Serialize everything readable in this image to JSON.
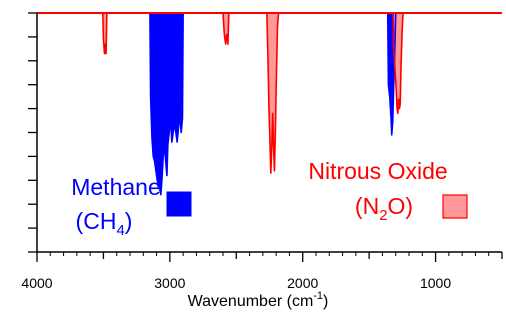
{
  "chart_data": {
    "type": "area",
    "xlabel": {
      "base": "Wavenumber (cm",
      "sup": "-1",
      "close": ")"
    },
    "xlim": [
      4000,
      500
    ],
    "ylim": [
      0,
      1
    ],
    "x_ticks": [
      4000,
      3000,
      2000,
      1000
    ],
    "x_tick_labels": [
      "4000",
      "3000",
      "2000",
      "1000"
    ],
    "y_tick_count": 10,
    "grid": false,
    "series": [
      {
        "name": "Methane (CH4)",
        "legend": {
          "line1": "Methane",
          "line2_base": "(CH",
          "line2_sub": "4",
          "line2_close": ")"
        },
        "color": "#0000ff",
        "fill": "#0000ff",
        "points": [
          [
            3200,
            0.0
          ],
          [
            3150,
            0.0
          ],
          [
            3145,
            0.35
          ],
          [
            3135,
            0.52
          ],
          [
            3125,
            0.6
          ],
          [
            3115,
            0.62
          ],
          [
            3105,
            0.66
          ],
          [
            3095,
            0.7
          ],
          [
            3085,
            0.72
          ],
          [
            3075,
            0.74
          ],
          [
            3068,
            0.76
          ],
          [
            3060,
            0.7
          ],
          [
            3050,
            0.6
          ],
          [
            3040,
            0.56
          ],
          [
            3030,
            0.63
          ],
          [
            3022,
            0.68
          ],
          [
            3015,
            0.55
          ],
          [
            3005,
            0.5
          ],
          [
            2995,
            0.44
          ],
          [
            2985,
            0.54
          ],
          [
            2975,
            0.5
          ],
          [
            2965,
            0.46
          ],
          [
            2955,
            0.5
          ],
          [
            2945,
            0.54
          ],
          [
            2935,
            0.48
          ],
          [
            2925,
            0.42
          ],
          [
            2915,
            0.5
          ],
          [
            2905,
            0.44
          ],
          [
            2900,
            0.0
          ],
          [
            2850,
            0.0
          ],
          [
            1360,
            0.0
          ],
          [
            1355,
            0.3
          ],
          [
            1345,
            0.35
          ],
          [
            1335,
            0.44
          ],
          [
            1330,
            0.51
          ],
          [
            1322,
            0.45
          ],
          [
            1315,
            0.3
          ],
          [
            1308,
            0.18
          ],
          [
            1300,
            0.0
          ]
        ]
      },
      {
        "name": "Nitrous Oxide (N2O)",
        "legend": {
          "line1": "Nitrous Oxide",
          "line2_open": "(N",
          "line2_sub": "2",
          "line2_close": "O)"
        },
        "color": "#ff0000",
        "fill": "#ff9999",
        "points": [
          [
            4000,
            0.0
          ],
          [
            3505,
            0.0
          ],
          [
            3500,
            0.11
          ],
          [
            3492,
            0.17
          ],
          [
            3486,
            0.13
          ],
          [
            3480,
            0.17
          ],
          [
            3474,
            0.0
          ],
          [
            2600,
            0.0
          ],
          [
            2590,
            0.09
          ],
          [
            2580,
            0.13
          ],
          [
            2572,
            0.09
          ],
          [
            2563,
            0.13
          ],
          [
            2556,
            0.0
          ],
          [
            2270,
            0.0
          ],
          [
            2262,
            0.18
          ],
          [
            2254,
            0.4
          ],
          [
            2246,
            0.55
          ],
          [
            2240,
            0.67
          ],
          [
            2232,
            0.55
          ],
          [
            2226,
            0.42
          ],
          [
            2220,
            0.55
          ],
          [
            2213,
            0.66
          ],
          [
            2206,
            0.5
          ],
          [
            2198,
            0.26
          ],
          [
            2190,
            0.06
          ],
          [
            2182,
            0.0
          ],
          [
            1320,
            0.0
          ],
          [
            1314,
            0.16
          ],
          [
            1305,
            0.24
          ],
          [
            1296,
            0.32
          ],
          [
            1290,
            0.4
          ],
          [
            1284,
            0.42
          ],
          [
            1278,
            0.36
          ],
          [
            1272,
            0.4
          ],
          [
            1266,
            0.38
          ],
          [
            1260,
            0.22
          ],
          [
            1252,
            0.08
          ],
          [
            1245,
            0.0
          ],
          [
            500,
            0.0
          ]
        ]
      }
    ]
  }
}
